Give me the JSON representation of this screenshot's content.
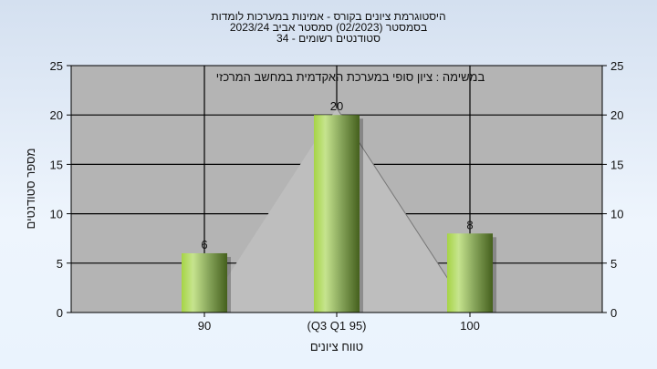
{
  "title_lines": [
    "היסטוגרמת ציונים בקורס - אמינות במערכות לומדות",
    "בסמסטר  (02/2023)  סמסטר אביב 2023/24",
    "סטודנטים רשומים - 34"
  ],
  "chart_data": {
    "type": "bar",
    "title": "היסטוגרמת ציונים בקורס - אמינות במערכות לומדות",
    "annotation": "במשימה : ציון סופי במערכת האקדמית במחשב המרכזי",
    "categories": [
      "90",
      "(Q3 Q1 95)",
      "100"
    ],
    "values": [
      6,
      20,
      8
    ],
    "data_labels": [
      "6",
      "20",
      "8"
    ],
    "overlay_area": [
      0,
      20.7,
      0
    ],
    "xlabel": "טווח ציונים",
    "ylabel": "מספר סטודנטים",
    "ylim": [
      0,
      25
    ],
    "yticks": [
      0,
      5,
      10,
      15,
      20,
      25
    ],
    "grid": true,
    "colors": {
      "bar_light": "#c6e48e",
      "bar_mid": "#a6d445",
      "bar_dark": "#45601d",
      "plot_bg": "#b4b4b4",
      "area": "#bebebe",
      "label": "#1a3a8c"
    }
  }
}
